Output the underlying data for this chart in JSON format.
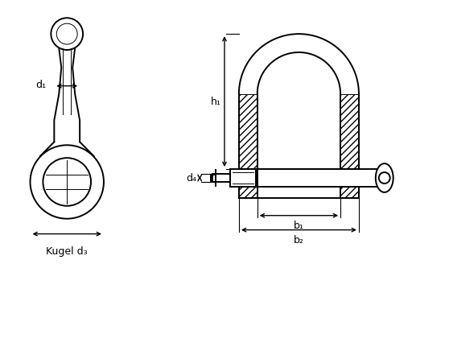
{
  "bg_color": "#ffffff",
  "line_color": "#000000",
  "fig_width": 5.58,
  "fig_height": 4.46,
  "dpi": 100,
  "labels": {
    "d1": "d₁",
    "d3": "Kugel d₃",
    "d4": "d₄",
    "h1": "h₁",
    "b1": "b₁",
    "b2": "b₂"
  }
}
